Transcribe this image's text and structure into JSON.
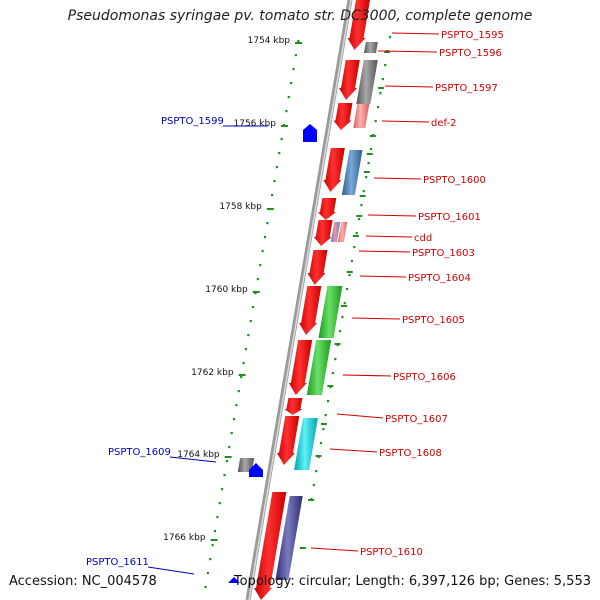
{
  "title": "Pseudomonas syringae pv. tomato str. DC3000, complete genome",
  "accession": "Accession: NC_004578",
  "summary": "Topology: circular; Length: 6,397,126 bp; Genes: 5,553",
  "colors": {
    "backbone": "#8a8a8a",
    "tick": "#1f8f1f",
    "gene_forward": "#ff0000",
    "label_red": "#d00000",
    "label_blue": "#0000bb",
    "arrow_blue": "#0000ff"
  },
  "scale_ticks": [
    "1754 kbp",
    "1756 kbp",
    "1758 kbp",
    "1760 kbp",
    "1762 kbp",
    "1764 kbp",
    "1766 kbp"
  ],
  "genes_right": [
    "PSPTO_1595",
    "PSPTO_1596",
    "PSPTO_1597",
    "def-2",
    "PSPTO_1600",
    "PSPTO_1601",
    "cdd",
    "PSPTO_1603",
    "PSPTO_1604",
    "PSPTO_1605",
    "PSPTO_1606",
    "PSPTO_1607",
    "PSPTO_1608",
    "PSPTO_1610"
  ],
  "genes_left": [
    "PSPTO_1599",
    "PSPTO_1609",
    "PSPTO_1611"
  ]
}
